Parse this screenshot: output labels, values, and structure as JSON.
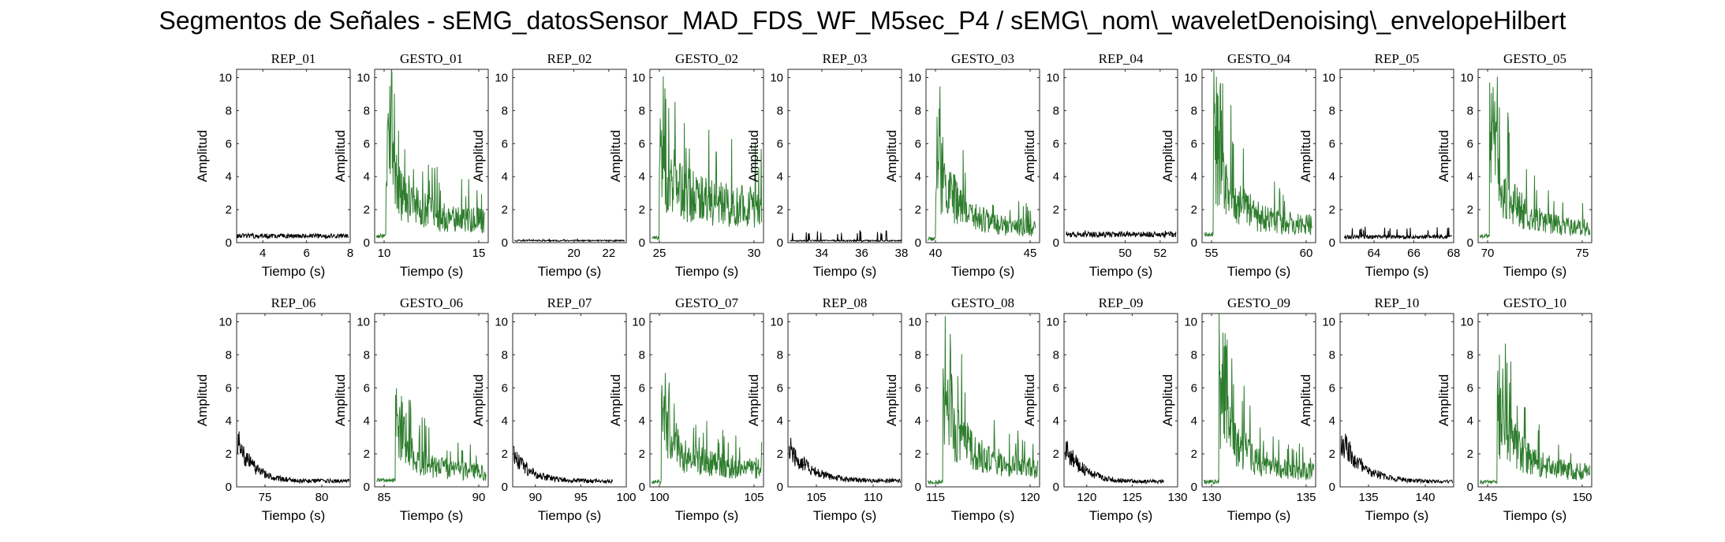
{
  "figure_title": "Segmentos de Señales - sEMG_datosSensor_MAD_FDS_WF_M5sec_P4 / sEMG\\_nom\\_waveletDenoising\\_envelopeHilbert",
  "colors": {
    "rep": "#000000",
    "gesto": "#2e7d2e"
  },
  "chart_data": [
    {
      "type": "line",
      "title": "REP_01",
      "kind": "rep",
      "xlabel": "Tiempo (s)",
      "ylabel": "Amplitud",
      "xlim": [
        2.8,
        8
      ],
      "ylim": [
        0,
        10.5
      ],
      "xticks": [
        4,
        6,
        8
      ],
      "yticks": [
        0,
        2,
        4,
        6,
        8,
        10
      ],
      "x_range": [
        2.8,
        7.9
      ],
      "baseline": 0.4,
      "peak_level": 0.55,
      "decay": 0
    },
    {
      "type": "line",
      "title": "GESTO_01",
      "kind": "gesto",
      "xlabel": "Tiempo (s)",
      "ylabel": "Amplitud",
      "xlim": [
        9.5,
        15.5
      ],
      "ylim": [
        0,
        10.5
      ],
      "xticks": [
        10,
        15
      ],
      "yticks": [
        0,
        2,
        4,
        6,
        8,
        10
      ],
      "x_range": [
        9.6,
        15.3
      ],
      "onset": 10.1,
      "peak": 9.4,
      "baseline": 0.4,
      "level_end": 1.5
    },
    {
      "type": "line",
      "title": "REP_02",
      "kind": "rep",
      "xlabel": "Tiempo (s)",
      "ylabel": "Amplitud",
      "xlim": [
        16.5,
        23
      ],
      "ylim": [
        0,
        10.5
      ],
      "xticks": [
        20,
        22
      ],
      "yticks": [
        0,
        2,
        4,
        6,
        8,
        10
      ],
      "x_range": [
        16.6,
        22.9
      ],
      "baseline": 0.12,
      "peak_level": 0.2,
      "decay": 0
    },
    {
      "type": "line",
      "title": "GESTO_02",
      "kind": "gesto",
      "xlabel": "Tiempo (s)",
      "ylabel": "Amplitud",
      "xlim": [
        24.5,
        30.5
      ],
      "ylim": [
        0,
        10.5
      ],
      "xticks": [
        25,
        30
      ],
      "yticks": [
        0,
        2,
        4,
        6,
        8,
        10
      ],
      "x_range": [
        24.6,
        30.4
      ],
      "onset": 25.0,
      "peak": 9.9,
      "baseline": 0.3,
      "level_end": 2.5
    },
    {
      "type": "line",
      "title": "REP_03",
      "kind": "rep",
      "xlabel": "Tiempo (s)",
      "ylabel": "Amplitud",
      "xlim": [
        32.3,
        38
      ],
      "ylim": [
        0,
        10.5
      ],
      "xticks": [
        34,
        36,
        38
      ],
      "yticks": [
        0,
        2,
        4,
        6,
        8,
        10
      ],
      "x_range": [
        32.4,
        38.0
      ],
      "baseline": 0.12,
      "peak_level": 0.75,
      "decay": 0
    },
    {
      "type": "line",
      "title": "GESTO_03",
      "kind": "gesto",
      "xlabel": "Tiempo (s)",
      "ylabel": "Amplitud",
      "xlim": [
        39.5,
        45.5
      ],
      "ylim": [
        0,
        10.5
      ],
      "xticks": [
        40,
        45
      ],
      "yticks": [
        0,
        2,
        4,
        6,
        8,
        10
      ],
      "x_range": [
        39.6,
        45.3
      ],
      "onset": 40.0,
      "peak": 9.9,
      "baseline": 0.2,
      "level_end": 1.0
    },
    {
      "type": "line",
      "title": "REP_04",
      "kind": "rep",
      "xlabel": "Tiempo (s)",
      "ylabel": "Amplitud",
      "xlim": [
        46.5,
        53
      ],
      "ylim": [
        0,
        10.5
      ],
      "xticks": [
        50,
        52
      ],
      "yticks": [
        0,
        2,
        4,
        6,
        8,
        10
      ],
      "x_range": [
        46.6,
        52.9
      ],
      "baseline": 0.5,
      "peak_level": 0.75,
      "decay": 0
    },
    {
      "type": "line",
      "title": "GESTO_04",
      "kind": "gesto",
      "xlabel": "Tiempo (s)",
      "ylabel": "Amplitud",
      "xlim": [
        54.5,
        60.5
      ],
      "ylim": [
        0,
        10.5
      ],
      "xticks": [
        55,
        60
      ],
      "yticks": [
        0,
        2,
        4,
        6,
        8,
        10
      ],
      "x_range": [
        54.6,
        60.3
      ],
      "onset": 55.1,
      "peak": 10.4,
      "baseline": 0.5,
      "level_end": 1.2
    },
    {
      "type": "line",
      "title": "REP_05",
      "kind": "rep",
      "xlabel": "Tiempo (s)",
      "ylabel": "Amplitud",
      "xlim": [
        62.3,
        68
      ],
      "ylim": [
        0,
        10.5
      ],
      "xticks": [
        64,
        66,
        68
      ],
      "yticks": [
        0,
        2,
        4,
        6,
        8,
        10
      ],
      "x_range": [
        62.5,
        67.9
      ],
      "baseline": 0.35,
      "peak_level": 1.0,
      "decay": 0
    },
    {
      "type": "line",
      "title": "GESTO_05",
      "kind": "gesto",
      "xlabel": "Tiempo (s)",
      "ylabel": "Amplitud",
      "xlim": [
        69.5,
        75.5
      ],
      "ylim": [
        0,
        10.5
      ],
      "xticks": [
        70,
        75
      ],
      "yticks": [
        0,
        2,
        4,
        6,
        8,
        10
      ],
      "x_range": [
        69.6,
        75.4
      ],
      "onset": 70.1,
      "peak": 10.3,
      "baseline": 0.4,
      "level_end": 1.0
    },
    {
      "type": "line",
      "title": "REP_06",
      "kind": "rep",
      "xlabel": "Tiempo (s)",
      "ylabel": "Amplitud",
      "xlim": [
        72.5,
        82.5
      ],
      "ylim": [
        0,
        10.5
      ],
      "xticks": [
        75,
        80
      ],
      "yticks": [
        0,
        2,
        4,
        6,
        8,
        10
      ],
      "x_range": [
        72.6,
        82.4
      ],
      "baseline": 0.35,
      "peak_level": 3.0,
      "decay": 1.3
    },
    {
      "type": "line",
      "title": "GESTO_06",
      "kind": "gesto",
      "xlabel": "Tiempo (s)",
      "ylabel": "Amplitud",
      "xlim": [
        84.5,
        90.5
      ],
      "ylim": [
        0,
        10.5
      ],
      "xticks": [
        85,
        90
      ],
      "yticks": [
        0,
        2,
        4,
        6,
        8,
        10
      ],
      "x_range": [
        84.6,
        90.4
      ],
      "onset": 85.6,
      "peak": 6.1,
      "baseline": 0.4,
      "level_end": 1.0
    },
    {
      "type": "line",
      "title": "REP_07",
      "kind": "rep",
      "xlabel": "Tiempo (s)",
      "ylabel": "Amplitud",
      "xlim": [
        87.5,
        100
      ],
      "ylim": [
        0,
        10.5
      ],
      "xticks": [
        90,
        95,
        100
      ],
      "yticks": [
        0,
        2,
        4,
        6,
        8,
        10
      ],
      "x_range": [
        87.6,
        98.5
      ],
      "baseline": 0.35,
      "peak_level": 2.0,
      "decay": 1.8
    },
    {
      "type": "line",
      "title": "GESTO_07",
      "kind": "gesto",
      "xlabel": "Tiempo (s)",
      "ylabel": "Amplitud",
      "xlim": [
        99.5,
        105.5
      ],
      "ylim": [
        0,
        10.5
      ],
      "xticks": [
        100,
        105
      ],
      "yticks": [
        0,
        2,
        4,
        6,
        8,
        10
      ],
      "x_range": [
        99.6,
        105.4
      ],
      "onset": 100.1,
      "peak": 7.2,
      "baseline": 0.3,
      "level_end": 1.3
    },
    {
      "type": "line",
      "title": "REP_08",
      "kind": "rep",
      "xlabel": "Tiempo (s)",
      "ylabel": "Amplitud",
      "xlim": [
        102.5,
        112.5
      ],
      "ylim": [
        0,
        10.5
      ],
      "xticks": [
        105,
        110
      ],
      "yticks": [
        0,
        2,
        4,
        6,
        8,
        10
      ],
      "x_range": [
        102.6,
        112.4
      ],
      "baseline": 0.35,
      "peak_level": 2.4,
      "decay": 1.8
    },
    {
      "type": "line",
      "title": "GESTO_08",
      "kind": "gesto",
      "xlabel": "Tiempo (s)",
      "ylabel": "Amplitud",
      "xlim": [
        114.5,
        120.5
      ],
      "ylim": [
        0,
        10.5
      ],
      "xticks": [
        115,
        120
      ],
      "yticks": [
        0,
        2,
        4,
        6,
        8,
        10
      ],
      "x_range": [
        114.6,
        120.4
      ],
      "onset": 115.4,
      "peak": 10.1,
      "baseline": 0.3,
      "level_end": 1.3
    },
    {
      "type": "line",
      "title": "REP_09",
      "kind": "rep",
      "xlabel": "Tiempo (s)",
      "ylabel": "Amplitud",
      "xlim": [
        117.5,
        130
      ],
      "ylim": [
        0,
        10.5
      ],
      "xticks": [
        120,
        125,
        130
      ],
      "yticks": [
        0,
        2,
        4,
        6,
        8,
        10
      ],
      "x_range": [
        117.6,
        128.5
      ],
      "baseline": 0.3,
      "peak_level": 2.4,
      "decay": 2.0
    },
    {
      "type": "line",
      "title": "GESTO_09",
      "kind": "gesto",
      "xlabel": "Tiempo (s)",
      "ylabel": "Amplitud",
      "xlim": [
        129.5,
        135.5
      ],
      "ylim": [
        0,
        10.5
      ],
      "xticks": [
        130,
        135
      ],
      "yticks": [
        0,
        2,
        4,
        6,
        8,
        10
      ],
      "x_range": [
        129.6,
        135.4
      ],
      "onset": 130.4,
      "peak": 9.5,
      "baseline": 0.3,
      "level_end": 1.0
    },
    {
      "type": "line",
      "title": "REP_10",
      "kind": "rep",
      "xlabel": "Tiempo (s)",
      "ylabel": "Amplitud",
      "xlim": [
        132.5,
        142.5
      ],
      "ylim": [
        0,
        10.5
      ],
      "xticks": [
        135,
        140
      ],
      "yticks": [
        0,
        2,
        4,
        6,
        8,
        10
      ],
      "x_range": [
        132.6,
        142.4
      ],
      "baseline": 0.3,
      "peak_level": 3.0,
      "decay": 1.8
    },
    {
      "type": "line",
      "title": "GESTO_10",
      "kind": "gesto",
      "xlabel": "Tiempo (s)",
      "ylabel": "Amplitud",
      "xlim": [
        144.5,
        150.5
      ],
      "ylim": [
        0,
        10.5
      ],
      "xticks": [
        145,
        150
      ],
      "yticks": [
        0,
        2,
        4,
        6,
        8,
        10
      ],
      "x_range": [
        144.6,
        150.4
      ],
      "onset": 145.5,
      "peak": 8.5,
      "baseline": 0.3,
      "level_end": 1.0
    }
  ]
}
